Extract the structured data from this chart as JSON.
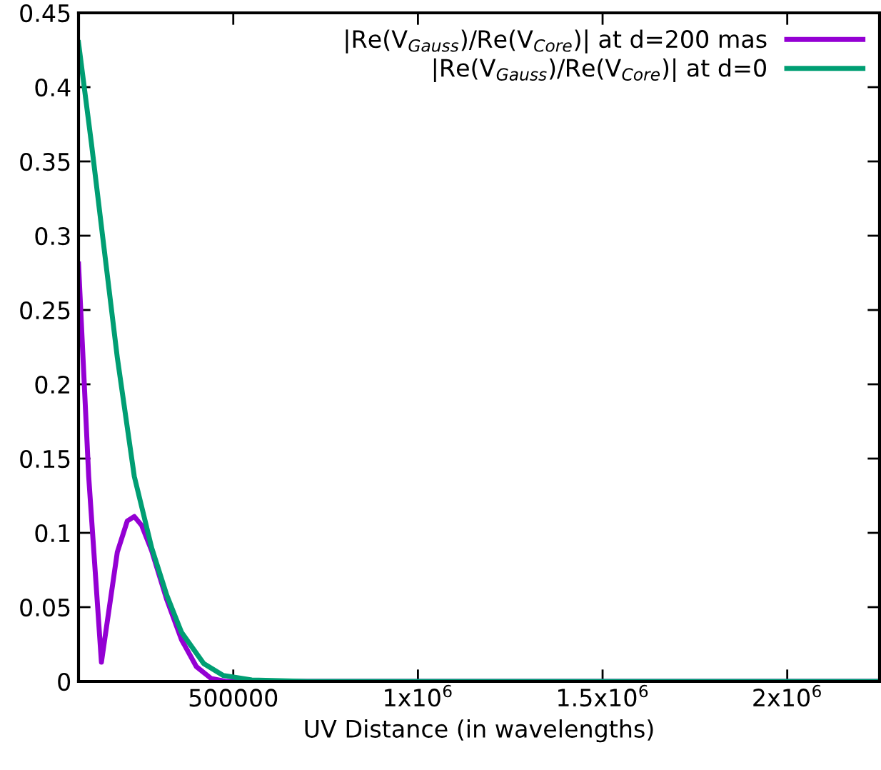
{
  "chart_data": {
    "type": "line",
    "xlabel": "UV Distance (in wavelengths)",
    "xlim": [
      81000,
      2250000
    ],
    "ylim": [
      0,
      0.45
    ],
    "xticks": [
      500000,
      {
        "value": 1000000,
        "label": "1x10$^{6}$"
      },
      {
        "value": 1500000,
        "label": "1.5x10$^{6}$"
      },
      {
        "value": 2000000,
        "label": "2x10$^{6}$"
      }
    ],
    "yticks": [
      0,
      0.05,
      0.1,
      0.15,
      0.2,
      0.25,
      0.3,
      0.35,
      0.4,
      0.45
    ],
    "grid": false,
    "legend": "top right",
    "line_style": "solid",
    "marker": "none",
    "series": [
      {
        "name": "|Re(V$_{Gauss}$)/Re(V$_{Core}$)| at d=200 mas",
        "color": "#9400d3",
        "x": [
          81000,
          108500,
          143000,
          186000,
          213000,
          232000,
          252000,
          279000,
          320000,
          360000,
          400000,
          440000,
          480000,
          2250000
        ],
        "values": [
          0.281,
          0.138,
          0.013,
          0.087,
          0.108,
          0.111,
          0.105,
          0.088,
          0.055,
          0.028,
          0.01,
          0.002,
          0,
          0
        ]
      },
      {
        "name": "|Re(V$_{Gauss}$)/Re(V$_{Core}$)| at d=0",
        "color": "#009e73",
        "x": [
          81000,
          116000,
          147000,
          186000,
          232000,
          279000,
          320000,
          360000,
          420000,
          473000,
          550000,
          700000,
          2250000
        ],
        "values": [
          0.43,
          0.362,
          0.298,
          0.218,
          0.138,
          0.09,
          0.058,
          0.033,
          0.012,
          0.004,
          0.001,
          0,
          0
        ]
      }
    ]
  }
}
